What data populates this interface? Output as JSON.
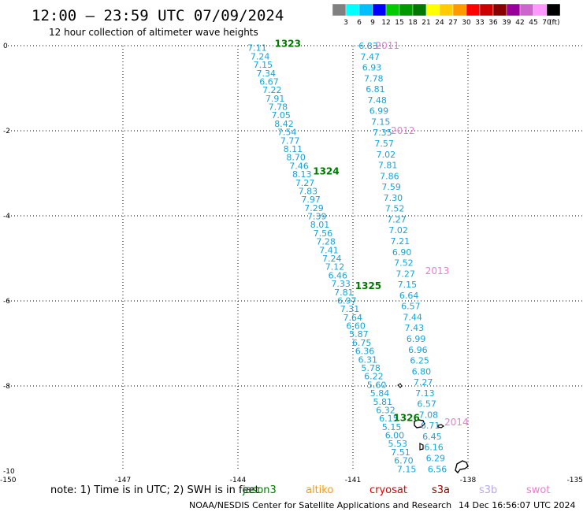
{
  "header": {
    "title": "12:00 – 23:59 UTC 07/09/2024",
    "subtitle": "12 hour collection of altimeter wave heights"
  },
  "colorbar": {
    "unit": "(ft)",
    "labels": [
      "3",
      "6",
      "9",
      "12",
      "15",
      "18",
      "21",
      "24",
      "27",
      "30",
      "33",
      "36",
      "39",
      "42",
      "45",
      "70"
    ],
    "colors": [
      "#808080",
      "#00ffff",
      "#00bfff",
      "#0000ff",
      "#00cc00",
      "#009900",
      "#007700",
      "#ffff00",
      "#ffcc00",
      "#ff9900",
      "#ff0000",
      "#cc0000",
      "#880000",
      "#990099",
      "#cc66cc",
      "#ff99ff",
      "#000000"
    ]
  },
  "chart_data": {
    "type": "scatter",
    "xlim": [
      -150,
      -135
    ],
    "ylim": [
      -10,
      0
    ],
    "x_ticks": [
      "-150",
      "-147",
      "-144",
      "-141",
      "-138",
      "-135"
    ],
    "y_ticks": [
      "0",
      "-2",
      "-4",
      "-6",
      "-8",
      "-10"
    ],
    "grid": true,
    "tracks": [
      {
        "pass_labels": [
          {
            "text": "1323",
            "x": -142.7,
            "y": 0.05
          },
          {
            "text": "1324",
            "x": -141.7,
            "y": -2.95
          },
          {
            "text": "1325",
            "x": -140.6,
            "y": -5.65
          },
          {
            "text": "1326",
            "x": -139.6,
            "y": -8.75
          }
        ],
        "pass_color": "#007800",
        "x_start": -143.5,
        "x_end": -139.6,
        "y_start": -0.05,
        "y_end": -9.95,
        "values": [
          "7.11",
          "7.24",
          "7.15",
          "7.34",
          "6.67",
          "7.22",
          "7.91",
          "7.78",
          "7.05",
          "8.42",
          "7.54",
          "7.77",
          "8.11",
          "8.70",
          "7.46",
          "8.13",
          "7.27",
          "7.83",
          "7.97",
          "7.29",
          "7.39",
          "8.01",
          "7.56",
          "7.28",
          "7.41",
          "7.24",
          "7.12",
          "6.46",
          "7.33",
          "7.81",
          "6.97",
          "7.31",
          "7.64",
          "6.60",
          "5.87",
          "6.75",
          "6.36",
          "6.31",
          "5.78",
          "6.22",
          "5.60",
          "5.84",
          "5.81",
          "6.32",
          "6.15",
          "5.15",
          "6.00",
          "5.53",
          "7.51",
          "6.70",
          "7.15"
        ]
      },
      {
        "pass_labels": [
          {
            "text": "2011",
            "x": -140.1,
            "y": 0.0
          },
          {
            "text": "2012",
            "x": -139.7,
            "y": -2.0
          },
          {
            "text": "2013",
            "x": -138.8,
            "y": -5.3
          },
          {
            "text": "2014",
            "x": -138.3,
            "y": -8.85
          }
        ],
        "pass_color": "#f07ad2",
        "x_start": -140.6,
        "x_end": -138.8,
        "y_start": 0.0,
        "y_end": -9.95,
        "values": [
          "6.83",
          "7.47",
          "6.93",
          "7.78",
          "6.81",
          "7.48",
          "6.99",
          "7.15",
          "7.35",
          "7.57",
          "7.02",
          "7.81",
          "7.86",
          "7.59",
          "7.30",
          "7.52",
          "7.27",
          "7.02",
          "7.21",
          "6.90",
          "7.52",
          "7.27",
          "7.15",
          "6.64",
          "6.57",
          "7.44",
          "7.43",
          "6.99",
          "6.96",
          "6.25",
          "6.80",
          "7.27",
          "7.13",
          "6.57",
          "7.08",
          "6.71",
          "6.45",
          "6.16",
          "6.29",
          "6.56"
        ]
      }
    ]
  },
  "note": {
    "text": "note:  1) Time is in UTC; 2) SWH is in feet",
    "satellites": [
      {
        "name": "jason3",
        "color": "#007800"
      },
      {
        "name": "altiko",
        "color": "#ff9900"
      },
      {
        "name": "cryosat",
        "color": "#dd0000"
      },
      {
        "name": "s3a",
        "color": "#880000"
      },
      {
        "name": "s3b",
        "color": "#b9a8e8"
      },
      {
        "name": "swot",
        "color": "#f07ad2"
      }
    ]
  },
  "footer": {
    "credit": "NOAA/NESDIS Center for Satellite Applications and Research",
    "timestamp": "14 Dec 16:56:07 UTC 2024"
  }
}
